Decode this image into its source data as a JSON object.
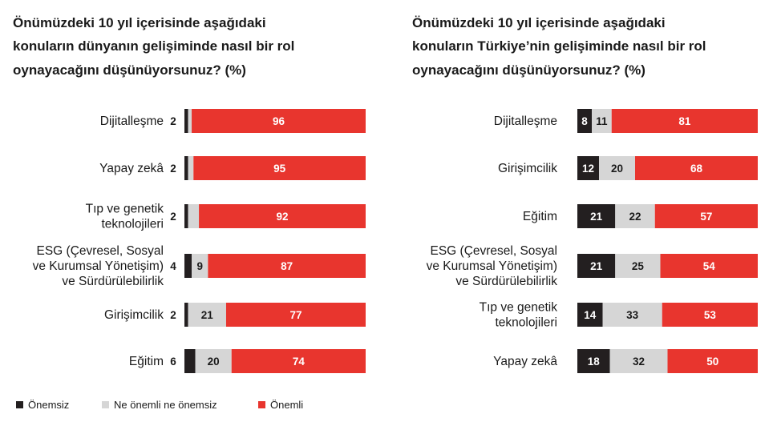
{
  "legend": [
    {
      "label": "Önemsiz",
      "color": "#231f20"
    },
    {
      "label": "Ne önemli ne önemsiz",
      "color": "#d6d6d6"
    },
    {
      "label": "Önemli",
      "color": "#e8352e"
    }
  ],
  "chart_data": [
    {
      "type": "bar",
      "stacked": true,
      "orientation": "horizontal",
      "title_lines": [
        "Önümüzdeki 10 yıl içerisinde aşağıdaki",
        "konuların dünyanın gelişiminde nasıl bir rol",
        "oynayacağını düşünüyorsunuz? (%)"
      ],
      "categories": [
        [
          "Dijitalleşme"
        ],
        [
          "Yapay zekâ"
        ],
        [
          "Tıp ve genetik",
          "teknolojileri"
        ],
        [
          "ESG (Çevresel, Sosyal",
          "ve Kurumsal Yönetişim)",
          "ve Sürdürülebilirlik"
        ],
        [
          "Girişimcilik"
        ],
        [
          "Eğitim"
        ]
      ],
      "series": [
        {
          "name": "Önemsiz",
          "values": [
            2,
            2,
            2,
            4,
            2,
            6
          ]
        },
        {
          "name": "Ne önemli ne önemsiz",
          "values": [
            2,
            3,
            6,
            9,
            21,
            20
          ]
        },
        {
          "name": "Önemli",
          "values": [
            96,
            95,
            92,
            87,
            77,
            74
          ]
        }
      ],
      "xlim": [
        0,
        100
      ]
    },
    {
      "type": "bar",
      "stacked": true,
      "orientation": "horizontal",
      "title_lines": [
        "Önümüzdeki 10 yıl içerisinde aşağıdaki",
        "konuların Türkiye’nin gelişiminde nasıl bir rol",
        "oynayacağını düşünüyorsunuz? (%)"
      ],
      "categories": [
        [
          "Dijitalleşme"
        ],
        [
          "Girişimcilik"
        ],
        [
          "Eğitim"
        ],
        [
          "ESG (Çevresel, Sosyal",
          "ve Kurumsal Yönetişim)",
          "ve Sürdürülebilirlik"
        ],
        [
          "Tıp ve genetik",
          "teknolojileri"
        ],
        [
          "Yapay zekâ"
        ]
      ],
      "series": [
        {
          "name": "Önemsiz",
          "values": [
            8,
            12,
            21,
            21,
            14,
            18
          ]
        },
        {
          "name": "Ne önemli ne önemsiz",
          "values": [
            11,
            20,
            22,
            25,
            33,
            32
          ]
        },
        {
          "name": "Önemli",
          "values": [
            81,
            68,
            57,
            54,
            53,
            50
          ]
        }
      ],
      "xlim": [
        0,
        100
      ]
    }
  ]
}
